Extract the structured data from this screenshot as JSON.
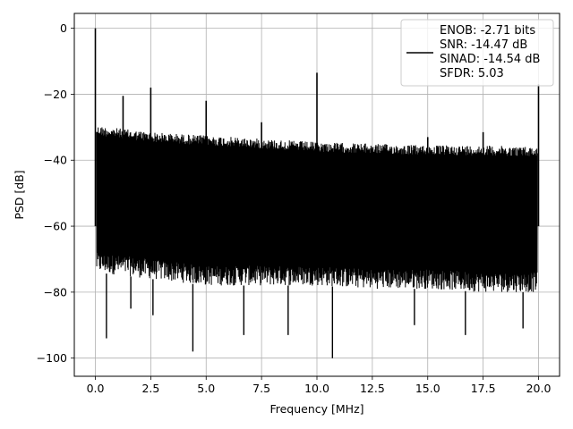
{
  "chart_data": {
    "type": "line",
    "title": "",
    "xlabel": "Frequency [MHz]",
    "ylabel": "PSD [dB]",
    "xlim": [
      -0.95,
      20.95
    ],
    "ylim": [
      -105.5,
      4.5
    ],
    "xticks": [
      0.0,
      2.5,
      5.0,
      7.5,
      10.0,
      12.5,
      15.0,
      17.5,
      20.0
    ],
    "xtick_labels": [
      "0.0",
      "2.5",
      "5.0",
      "7.5",
      "10.0",
      "12.5",
      "15.0",
      "17.5",
      "20.0"
    ],
    "yticks": [
      0,
      -20,
      -40,
      -60,
      -80,
      -100
    ],
    "ytick_labels": [
      "0",
      "−20",
      "−40",
      "−60",
      "−80",
      "−100"
    ],
    "grid": true,
    "legend_position": "top-right",
    "legend": {
      "entries": [
        "ENOB: -2.71 bits",
        "SNR: -14.47 dB",
        "SINAD: -14.54 dB",
        "SFDR: 5.03"
      ]
    },
    "series": [
      {
        "color": "#000000",
        "noise_envelope": {
          "x": [
            0.05,
            2.5,
            5.0,
            7.5,
            10.0,
            12.5,
            15.0,
            17.5,
            19.95
          ],
          "upper": [
            -29.5,
            -31.5,
            -32.5,
            -33.5,
            -34.5,
            -35.0,
            -35.5,
            -35.5,
            -36.0
          ],
          "lower": [
            -74,
            -76,
            -78,
            -78,
            -78,
            -79,
            -79,
            -80,
            -80
          ]
        },
        "spikes": [
          {
            "x": 0.0,
            "y": 0.0
          },
          {
            "x": 1.25,
            "y": -20.5
          },
          {
            "x": 2.5,
            "y": -18.0
          },
          {
            "x": 5.0,
            "y": -22.0
          },
          {
            "x": 7.5,
            "y": -28.5
          },
          {
            "x": 10.0,
            "y": -13.5
          },
          {
            "x": 15.0,
            "y": -33.0
          },
          {
            "x": 17.5,
            "y": -31.5
          },
          {
            "x": 20.0,
            "y": -17.0
          }
        ],
        "dips": [
          {
            "x": 0.5,
            "y": -94
          },
          {
            "x": 1.6,
            "y": -85
          },
          {
            "x": 2.6,
            "y": -87
          },
          {
            "x": 4.4,
            "y": -98
          },
          {
            "x": 6.7,
            "y": -93
          },
          {
            "x": 8.7,
            "y": -93
          },
          {
            "x": 10.7,
            "y": -100
          },
          {
            "x": 14.4,
            "y": -90
          },
          {
            "x": 16.7,
            "y": -93
          },
          {
            "x": 19.3,
            "y": -91
          }
        ]
      }
    ]
  }
}
